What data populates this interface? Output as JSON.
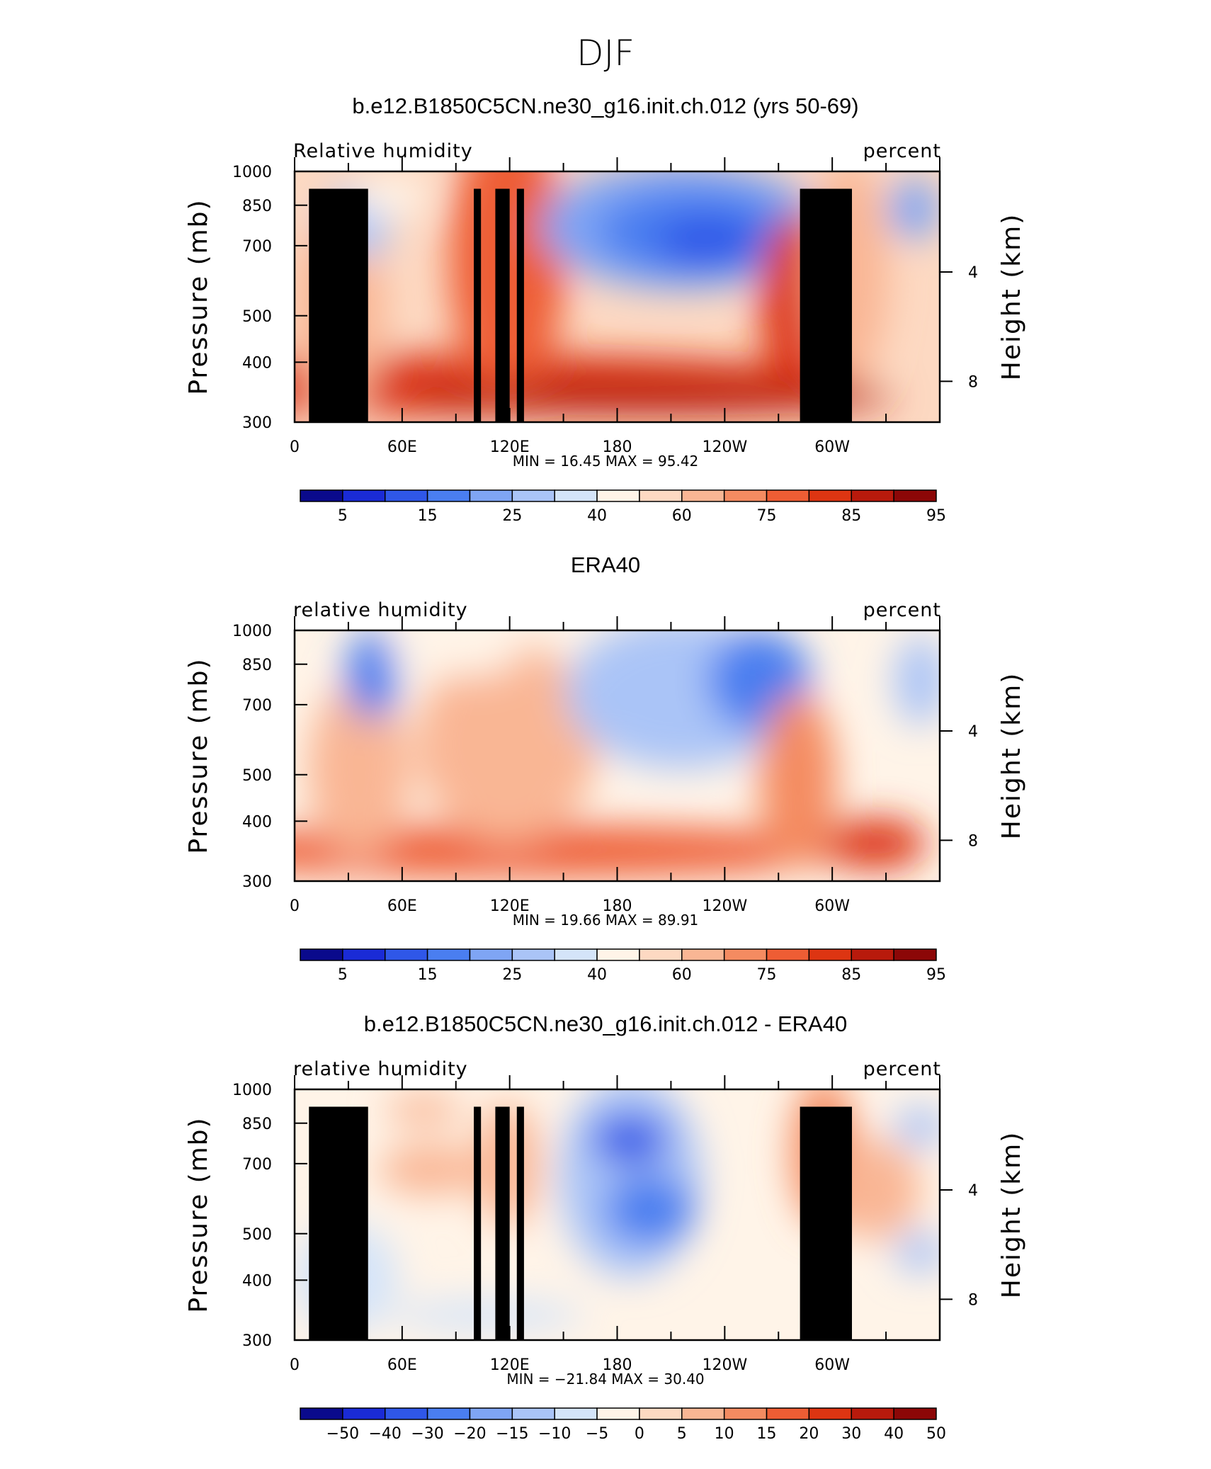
{
  "figure": {
    "title": "DJF"
  },
  "palette": [
    "#0a0a8c",
    "#1a2bd6",
    "#2f57e8",
    "#4a7ef0",
    "#7fa5f4",
    "#aac4f7",
    "#d4e4f9",
    "#fff4e8",
    "#fdd9c2",
    "#f9b694",
    "#f48b61",
    "#ee5d34",
    "#dd3512",
    "#b81a0c",
    "#8c0707"
  ],
  "common": {
    "y_label": "Pressure (mb)",
    "y2_label": "Height (km)",
    "y_ticks": [
      "300",
      "400",
      "500",
      "700",
      "850",
      "1000"
    ],
    "y2_ticks": [
      "8",
      "4"
    ],
    "x_ticks": [
      "0",
      "60E",
      "120E",
      "180",
      "120W",
      "60W"
    ],
    "min_label": "MIN =",
    "max_label": "MAX ="
  },
  "chart_data": [
    {
      "type": "heatmap",
      "title": "b.e12.B1850C5CN.ne30_g16.init.ch.012 (yrs 50-69)",
      "left_label": "Relative humidity",
      "right_label": "percent",
      "xlabel": "",
      "ylabel": "Pressure (mb)",
      "y2label": "Height (km)",
      "xlim": [
        0,
        360
      ],
      "ylim_pressure": [
        1000,
        300
      ],
      "min": "16.45",
      "max": "95.42",
      "colorbar_labels": [
        "5",
        "15",
        "25",
        "40",
        "60",
        "75",
        "85",
        "95"
      ],
      "terrain": true
    },
    {
      "type": "heatmap",
      "title": "ERA40",
      "left_label": "relative humidity",
      "right_label": "percent",
      "xlabel": "",
      "ylabel": "Pressure (mb)",
      "y2label": "Height (km)",
      "xlim": [
        0,
        360
      ],
      "ylim_pressure": [
        1000,
        300
      ],
      "min": "19.66",
      "max": "89.91",
      "colorbar_labels": [
        "5",
        "15",
        "25",
        "40",
        "60",
        "75",
        "85",
        "95"
      ],
      "terrain": false
    },
    {
      "type": "heatmap",
      "title": "b.e12.B1850C5CN.ne30_g16.init.ch.012 - ERA40",
      "left_label": "relative humidity",
      "right_label": "percent",
      "xlabel": "",
      "ylabel": "Pressure (mb)",
      "y2label": "Height (km)",
      "xlim": [
        0,
        360
      ],
      "ylim_pressure": [
        1000,
        300
      ],
      "min": "−21.84",
      "max": "30.40",
      "colorbar_labels": [
        "−50",
        "−40",
        "−30",
        "−20",
        "−15",
        "−10",
        "−5",
        "0",
        "5",
        "10",
        "15",
        "20",
        "30",
        "40",
        "50"
      ],
      "terrain": true
    }
  ]
}
